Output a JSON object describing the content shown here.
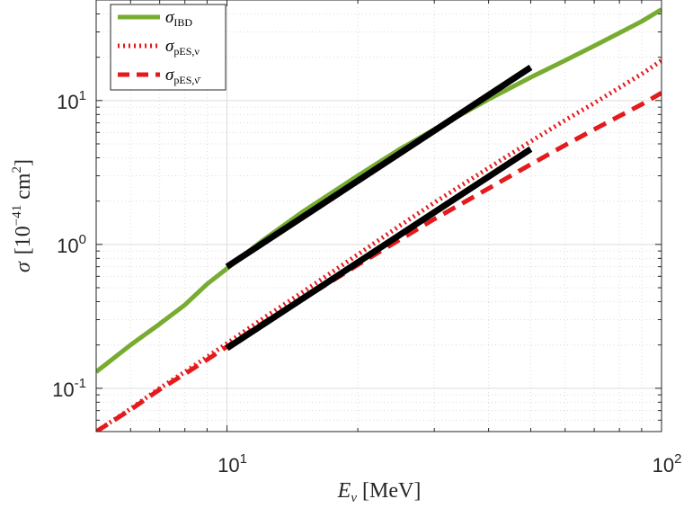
{
  "chart_data": {
    "type": "line",
    "xscale": "log",
    "yscale": "log",
    "xlim": [
      5,
      100
    ],
    "ylim": [
      0.05,
      50
    ],
    "grid": true,
    "minor_grid": true,
    "xlabel": {
      "symbol": "E",
      "sub": "ν",
      "unit": "[MeV]"
    },
    "ylabel": {
      "symbol": "σ",
      "unit_pre": "[10",
      "unit_exp": "−41",
      "unit_mid": " cm",
      "unit_exp2": "2",
      "unit_post": "]"
    },
    "x_ticks": [
      {
        "value": 10,
        "base": "10",
        "exp": "1"
      },
      {
        "value": 100,
        "base": "10",
        "exp": "2"
      }
    ],
    "y_ticks": [
      {
        "value": 0.1,
        "base": "10",
        "exp": "-1"
      },
      {
        "value": 1,
        "base": "10",
        "exp": "0"
      },
      {
        "value": 10,
        "base": "10",
        "exp": "1"
      }
    ],
    "legend_position": "top-left",
    "series": [
      {
        "name": "σ_IBD",
        "sym": "σ",
        "sub": "IBD",
        "color": "#77AC30",
        "style": "solid",
        "x": [
          5,
          6,
          7,
          8,
          9,
          10,
          12,
          15,
          20,
          25,
          30,
          40,
          50,
          60,
          70,
          80,
          90,
          100
        ],
        "y": [
          0.13,
          0.2,
          0.28,
          0.38,
          0.53,
          0.68,
          1.05,
          1.7,
          3.0,
          4.6,
          6.3,
          10.2,
          14.5,
          19.0,
          24.0,
          29.5,
          35.5,
          43.0
        ]
      },
      {
        "name": "σ_pES,ν",
        "sym": "σ",
        "sub": "pES,ν",
        "color": "#E41A1C",
        "style": "dotted",
        "x": [
          5,
          6,
          7,
          8,
          9,
          10,
          12,
          15,
          20,
          25,
          30,
          40,
          50,
          60,
          70,
          80,
          90,
          100
        ],
        "y": [
          0.05,
          0.072,
          0.1,
          0.13,
          0.165,
          0.205,
          0.3,
          0.47,
          0.85,
          1.35,
          1.95,
          3.4,
          5.2,
          7.3,
          9.6,
          12.3,
          15.3,
          19.0
        ]
      },
      {
        "name": "σ_pES,ν̄",
        "sym": "σ",
        "sub": "pES,ν̄",
        "color": "#E41A1C",
        "style": "dashed",
        "x": [
          5,
          6,
          7,
          8,
          9,
          10,
          12,
          15,
          20,
          25,
          30,
          40,
          50,
          60,
          70,
          80,
          90,
          100
        ],
        "y": [
          0.05,
          0.071,
          0.098,
          0.126,
          0.158,
          0.195,
          0.28,
          0.42,
          0.72,
          1.08,
          1.5,
          2.45,
          3.6,
          4.9,
          6.3,
          7.8,
          9.4,
          11.3
        ]
      }
    ],
    "fits": [
      {
        "color": "#000000",
        "x": [
          10,
          50
        ],
        "y": [
          0.7,
          17.0
        ]
      },
      {
        "color": "#000000",
        "x": [
          10,
          50
        ],
        "y": [
          0.19,
          4.6
        ]
      }
    ]
  }
}
